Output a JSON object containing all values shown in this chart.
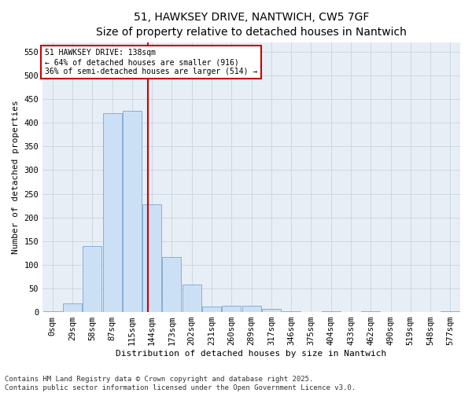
{
  "title": "51, HAWKSEY DRIVE, NANTWICH, CW5 7GF",
  "subtitle": "Size of property relative to detached houses in Nantwich",
  "xlabel": "Distribution of detached houses by size in Nantwich",
  "ylabel": "Number of detached properties",
  "bin_labels": [
    "0sqm",
    "29sqm",
    "58sqm",
    "87sqm",
    "115sqm",
    "144sqm",
    "173sqm",
    "202sqm",
    "231sqm",
    "260sqm",
    "289sqm",
    "317sqm",
    "346sqm",
    "375sqm",
    "404sqm",
    "433sqm",
    "462sqm",
    "490sqm",
    "519sqm",
    "548sqm",
    "577sqm"
  ],
  "bar_heights": [
    2,
    19,
    140,
    420,
    425,
    228,
    116,
    59,
    11,
    13,
    13,
    6,
    1,
    0,
    2,
    0,
    1,
    0,
    0,
    0,
    1
  ],
  "bar_color": "#cce0f5",
  "bar_edge_color": "#6699cc",
  "vline_color": "#cc0000",
  "annotation_line1": "51 HAWKSEY DRIVE: 138sqm",
  "annotation_line2": "← 64% of detached houses are smaller (916)",
  "annotation_line3": "36% of semi-detached houses are larger (514) →",
  "annotation_box_color": "#cc0000",
  "ylim": [
    0,
    570
  ],
  "yticks": [
    0,
    50,
    100,
    150,
    200,
    250,
    300,
    350,
    400,
    450,
    500,
    550
  ],
  "bg_color": "#e8eef5",
  "footer_text": "Contains HM Land Registry data © Crown copyright and database right 2025.\nContains public sector information licensed under the Open Government Licence v3.0.",
  "title_fontsize": 10,
  "label_fontsize": 8,
  "tick_fontsize": 7.5,
  "footer_fontsize": 6.5
}
